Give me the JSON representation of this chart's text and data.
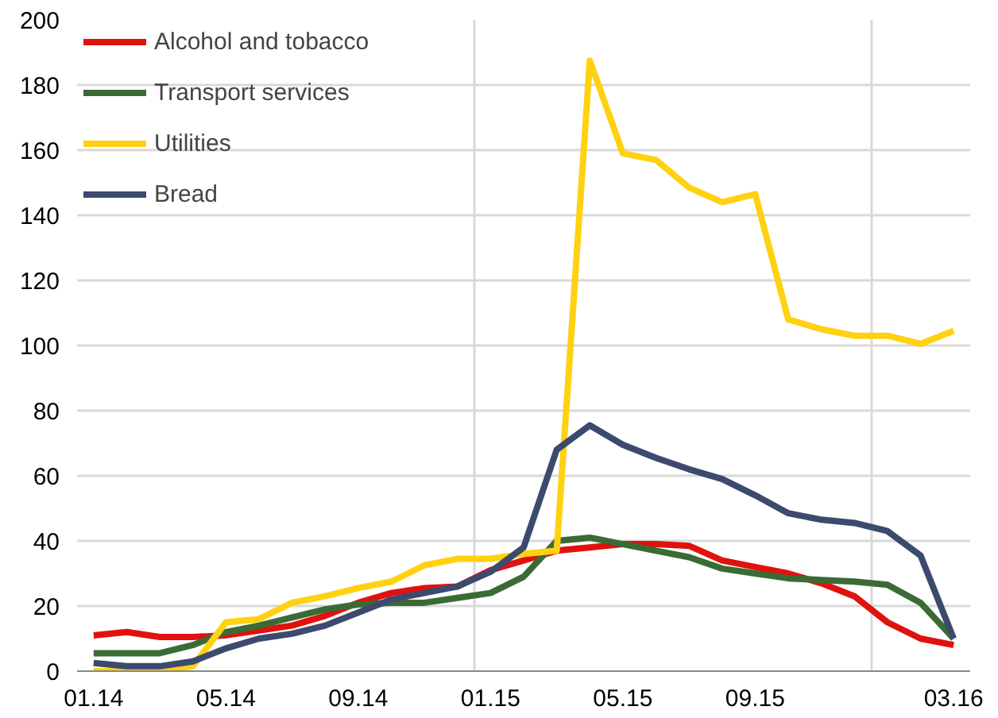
{
  "chart_data": {
    "type": "line",
    "categories": [
      "01.14",
      null,
      null,
      null,
      "05.14",
      null,
      null,
      null,
      "09.14",
      null,
      null,
      null,
      "01.15",
      null,
      null,
      null,
      "05.15",
      null,
      null,
      null,
      "09.15",
      null,
      null,
      null,
      null,
      null,
      "03.16"
    ],
    "series": [
      {
        "name": "Alcohol and tobacco",
        "color": "#e0120f",
        "values": [
          11,
          12,
          10.5,
          10.5,
          11,
          12.5,
          14,
          17,
          21,
          24,
          25.5,
          26,
          31,
          34,
          37,
          38,
          39,
          39,
          38.5,
          34,
          32,
          30,
          27,
          23,
          15,
          10,
          8
        ]
      },
      {
        "name": "Transport services",
        "color": "#3a6b35",
        "values": [
          5.5,
          5.5,
          5.5,
          8,
          12,
          14,
          16.5,
          19,
          20.5,
          21,
          21,
          22.5,
          24,
          29,
          40,
          41,
          39,
          37,
          35,
          31.5,
          30,
          28.5,
          28,
          27.5,
          26.5,
          21,
          10
        ]
      },
      {
        "name": "Utilities",
        "color": "#ffd111",
        "values": [
          0,
          0,
          0,
          1.5,
          15,
          16,
          21,
          23,
          25.5,
          27.5,
          32.5,
          34.5,
          34.5,
          36,
          37,
          187.5,
          159,
          157,
          148.5,
          144,
          146.5,
          108,
          105,
          103,
          103,
          100.5,
          104.5
        ]
      },
      {
        "name": "Bread",
        "color": "#3c4a6e",
        "values": [
          2.5,
          1.5,
          1.5,
          3,
          7,
          10,
          11.5,
          14,
          18,
          22,
          24,
          26,
          30.5,
          38,
          68,
          75.5,
          69.5,
          65.5,
          62,
          59,
          54,
          48.5,
          46.5,
          45.5,
          43,
          35.5,
          10
        ]
      }
    ],
    "ylim": [
      0,
      200
    ],
    "yticks": [
      0,
      20,
      40,
      60,
      80,
      100,
      120,
      140,
      160,
      180,
      200
    ],
    "grid": true,
    "legend": "top left",
    "line_style": "solid",
    "marker": "none"
  }
}
